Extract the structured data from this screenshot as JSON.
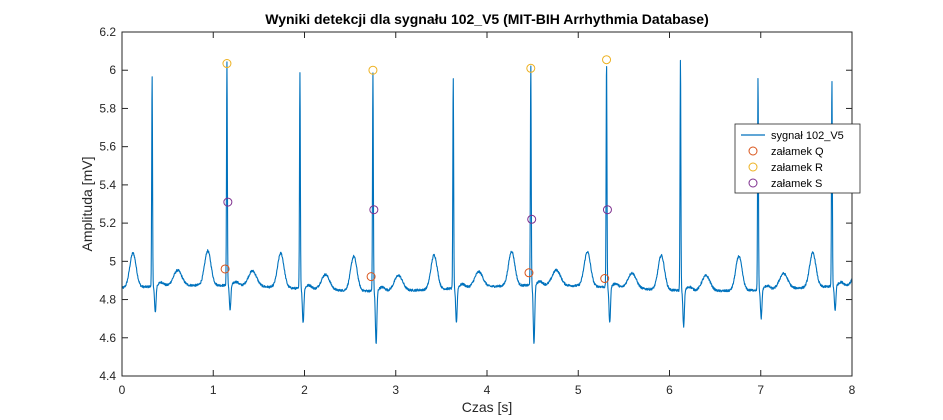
{
  "chart_data": {
    "type": "line",
    "title": "Wyniki detekcji dla sygnału 102_V5 (MIT-BIH Arrhythmia Database)",
    "xlabel": "Czas [s]",
    "ylabel": "Amplituda [mV]",
    "xlim": [
      0,
      8
    ],
    "ylim": [
      4.4,
      6.2
    ],
    "xticks": [
      0,
      1,
      2,
      3,
      4,
      5,
      6,
      7,
      8
    ],
    "yticks": [
      4.4,
      4.6,
      4.8,
      5,
      5.2,
      5.4,
      5.6,
      5.8,
      6,
      6.2
    ],
    "xtick_labels": [
      "0",
      "1",
      "2",
      "3",
      "4",
      "5",
      "6",
      "7",
      "8"
    ],
    "ytick_labels": [
      "4.4",
      "4.6",
      "4.8",
      "5",
      "5.2",
      "5.4",
      "5.6",
      "5.8",
      "6",
      "6.2"
    ],
    "grid": false,
    "legend_position": "right",
    "colors": {
      "signal": "#0072BD",
      "q": "#D95319",
      "r": "#EDB120",
      "s": "#7E2F8E"
    },
    "series": [
      {
        "name": "sygnał 102_V5",
        "kind": "line",
        "color": "#0072BD",
        "baseline": 4.86,
        "beats": [
          {
            "t": 0.33,
            "amp": 5.96,
            "s": 4.66,
            "pacer_drop": 5.3
          },
          {
            "t": 1.15,
            "amp": 6.03,
            "s": 4.67,
            "pacer_drop": 5.3
          },
          {
            "t": 1.95,
            "amp": 5.99,
            "s": 4.62,
            "pacer_drop": 5.06
          },
          {
            "t": 2.75,
            "amp": 6.0,
            "s": 4.52,
            "pacer_drop": 5.27
          },
          {
            "t": 3.63,
            "amp": 5.96,
            "s": 4.62,
            "pacer_drop": 5.05
          },
          {
            "t": 4.48,
            "amp": 6.01,
            "s": 4.49,
            "pacer_drop": 5.21
          },
          {
            "t": 5.31,
            "amp": 6.05,
            "s": 4.61,
            "pacer_drop": 5.27
          },
          {
            "t": 6.12,
            "amp": 6.07,
            "s": 4.61,
            "pacer_drop": 5.11
          },
          {
            "t": 6.97,
            "amp": 5.97,
            "s": 4.65,
            "pacer_drop": 5.3
          },
          {
            "t": 7.78,
            "amp": 5.94,
            "s": 4.67,
            "pacer_drop": 5.28
          }
        ]
      },
      {
        "name": "załamek Q",
        "kind": "marker",
        "color": "#D95319",
        "x": [
          1.13,
          2.73,
          4.46,
          5.29
        ],
        "y": [
          4.96,
          4.92,
          4.94,
          4.91
        ]
      },
      {
        "name": "załamek R",
        "kind": "marker",
        "color": "#EDB120",
        "x": [
          1.15,
          2.75,
          4.48,
          5.31
        ],
        "y": [
          6.035,
          6.0,
          6.01,
          6.055
        ]
      },
      {
        "name": "załamek S",
        "kind": "marker",
        "color": "#7E2F8E",
        "x": [
          1.16,
          2.76,
          4.49,
          5.32
        ],
        "y": [
          5.31,
          5.27,
          5.22,
          5.27
        ]
      }
    ]
  }
}
